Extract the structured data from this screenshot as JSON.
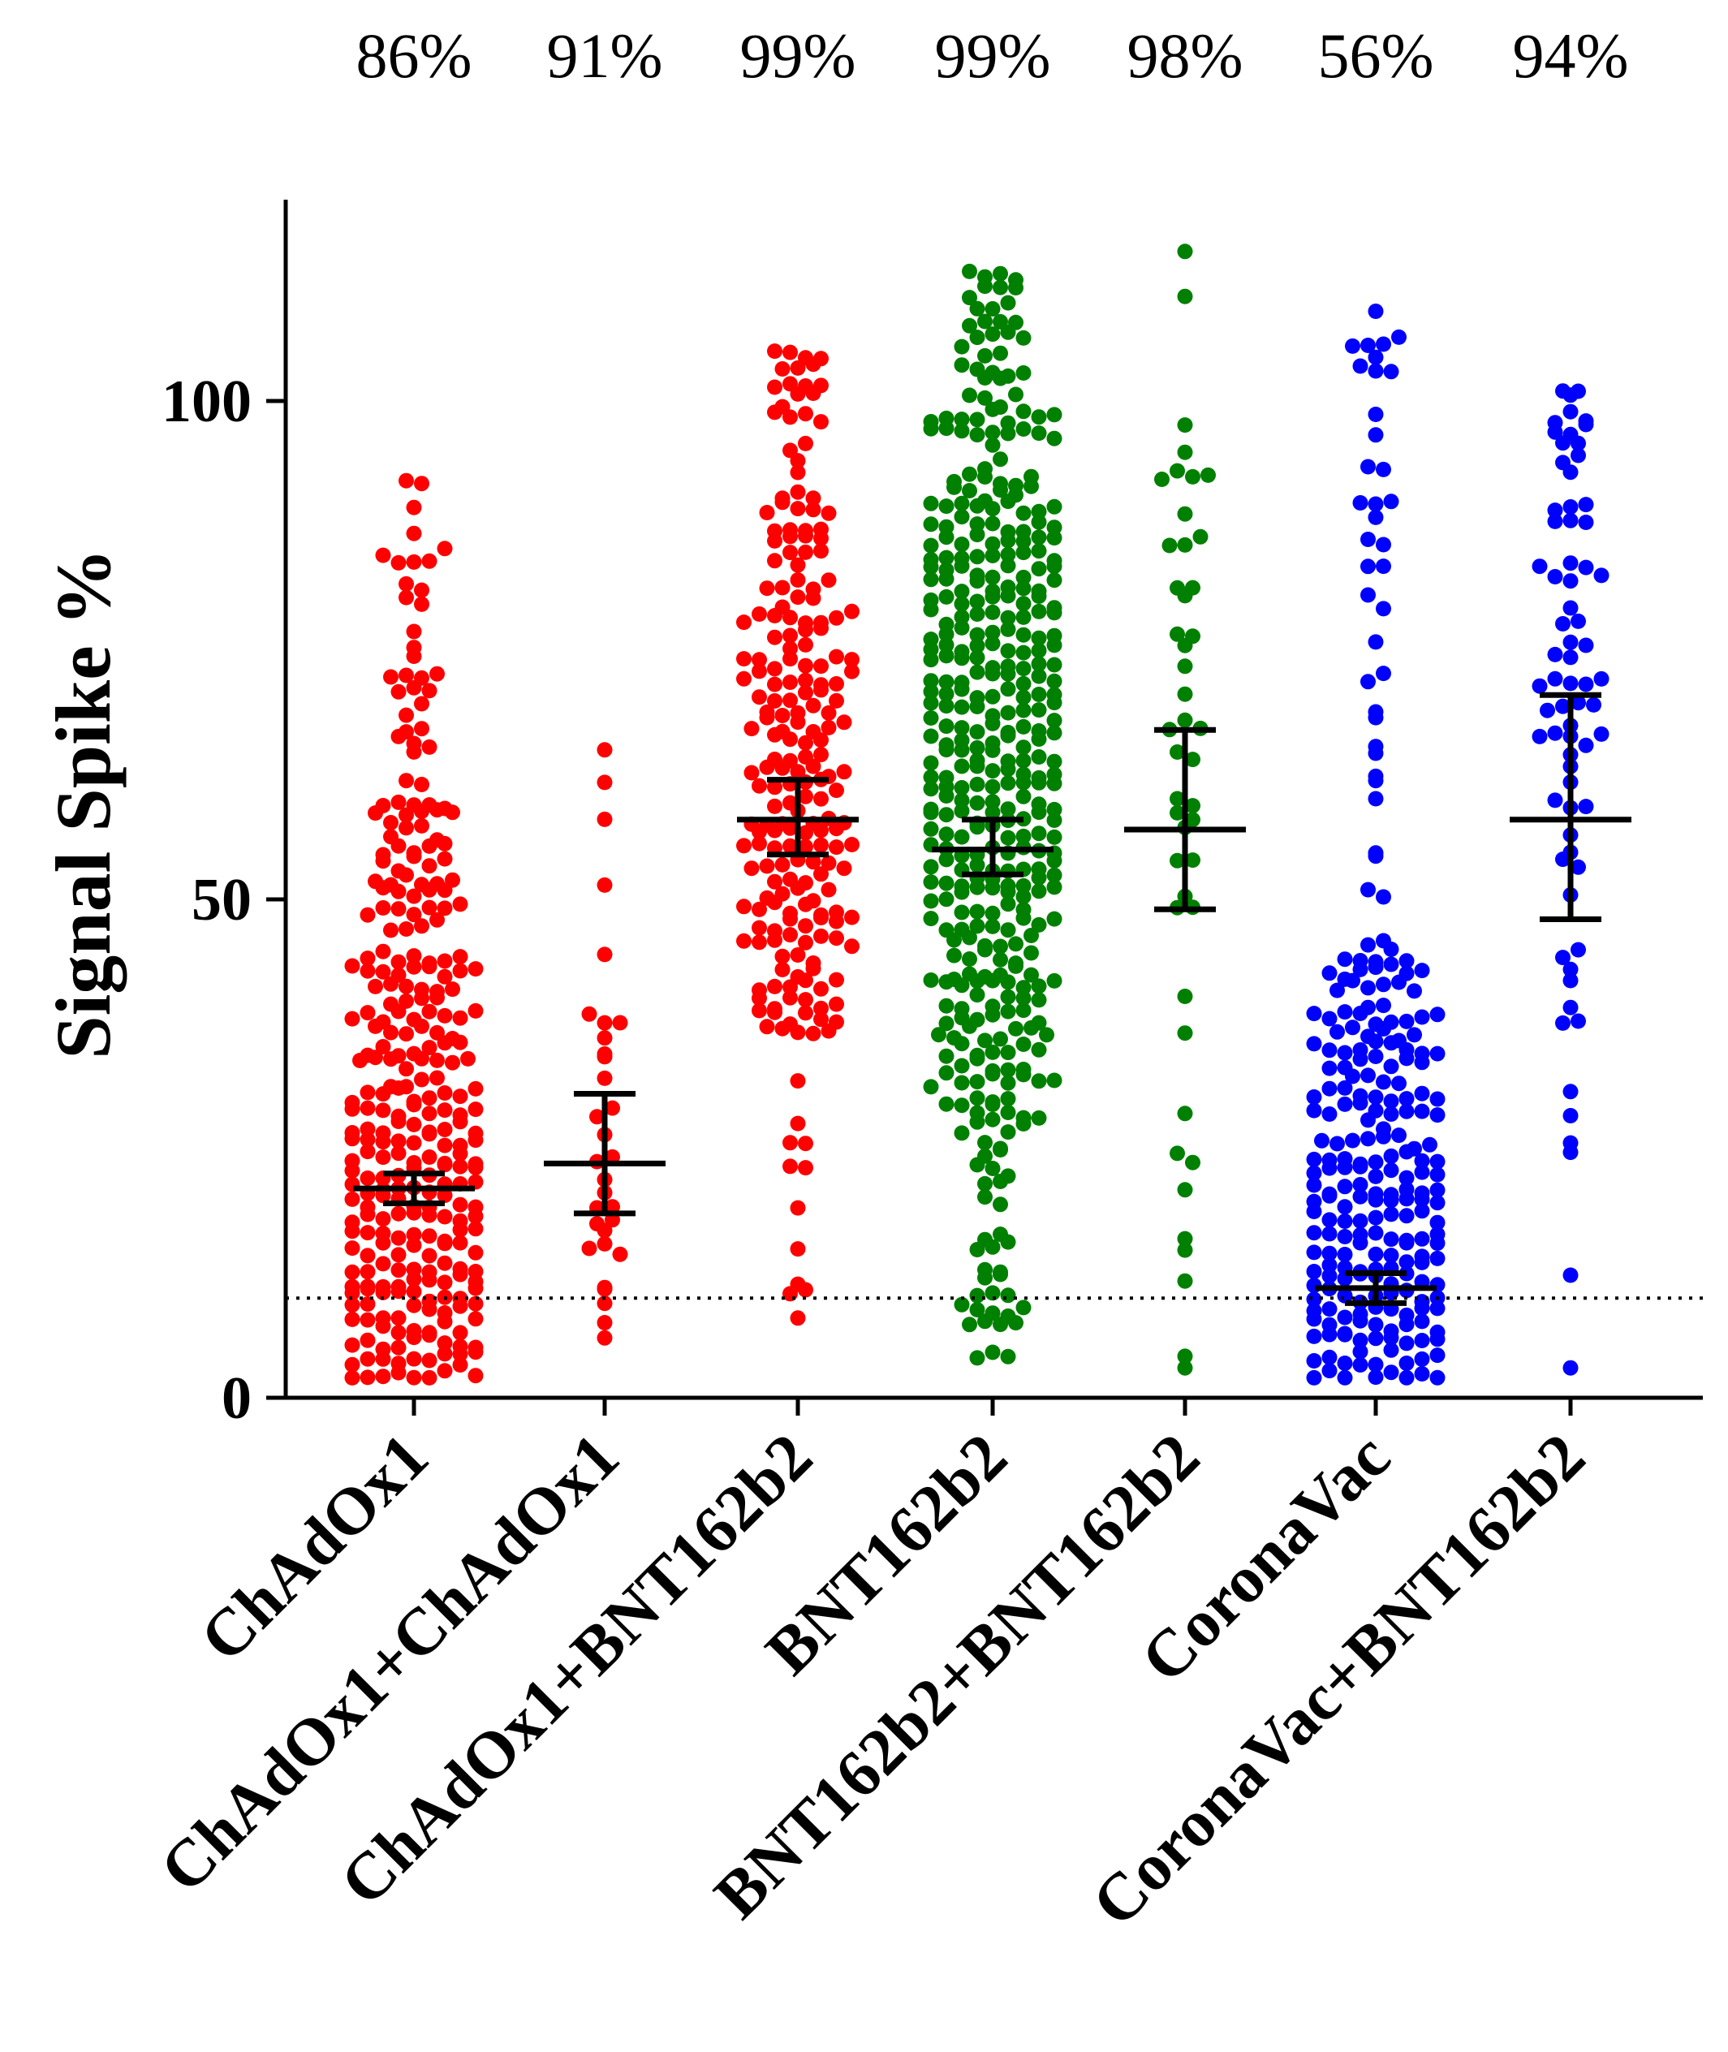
{
  "chart_data": {
    "type": "scatter",
    "subtype": "dot-plot-with-mean-and-error-bars",
    "title": "",
    "xlabel": "",
    "ylabel": "Signal Spike %",
    "ylim": [
      0,
      120
    ],
    "yticks": [
      0,
      50,
      100
    ],
    "threshold_line": {
      "y": 10,
      "style": "dotted"
    },
    "grid": false,
    "groups": [
      {
        "name": "ChAdOx1",
        "percent_label": "86%",
        "color": "#ff0000",
        "n": 560,
        "mean": 21,
        "err_low": 19.5,
        "err_high": 22.5,
        "min": 2,
        "max": 92
      },
      {
        "name": "ChAdOx1+ChAdOx1",
        "percent_label": "91%",
        "color": "#ff0000",
        "n": 32,
        "mean": 23.5,
        "err_low": 18.5,
        "err_high": 30.5,
        "min": 6,
        "max": 65
      },
      {
        "name": "ChAdOx1+BNT162b2",
        "percent_label": "99%",
        "color": "#ff0000",
        "n": 230,
        "mean": 58,
        "err_low": 54.5,
        "err_high": 62,
        "min": 8,
        "max": 105
      },
      {
        "name": "BNT162b2",
        "percent_label": "99%",
        "color": "#008000",
        "n": 620,
        "mean": 55,
        "err_low": 52.5,
        "err_high": 58,
        "min": 4,
        "max": 113
      },
      {
        "name": "BNT162b2+BNT162b2",
        "percent_label": "98%",
        "color": "#008000",
        "n": 46,
        "mean": 57,
        "err_low": 49,
        "err_high": 67,
        "min": 3,
        "max": 115
      },
      {
        "name": "CoronaVac",
        "percent_label": "56%",
        "color": "#0000ff",
        "n": 540,
        "mean": 11,
        "err_low": 9.5,
        "err_high": 12.5,
        "min": 2,
        "max": 109
      },
      {
        "name": "CoronaVac+BNT162b2",
        "percent_label": "94%",
        "color": "#0000ff",
        "n": 72,
        "mean": 58,
        "err_low": 48,
        "err_high": 70.5,
        "min": 3,
        "max": 101
      }
    ]
  }
}
